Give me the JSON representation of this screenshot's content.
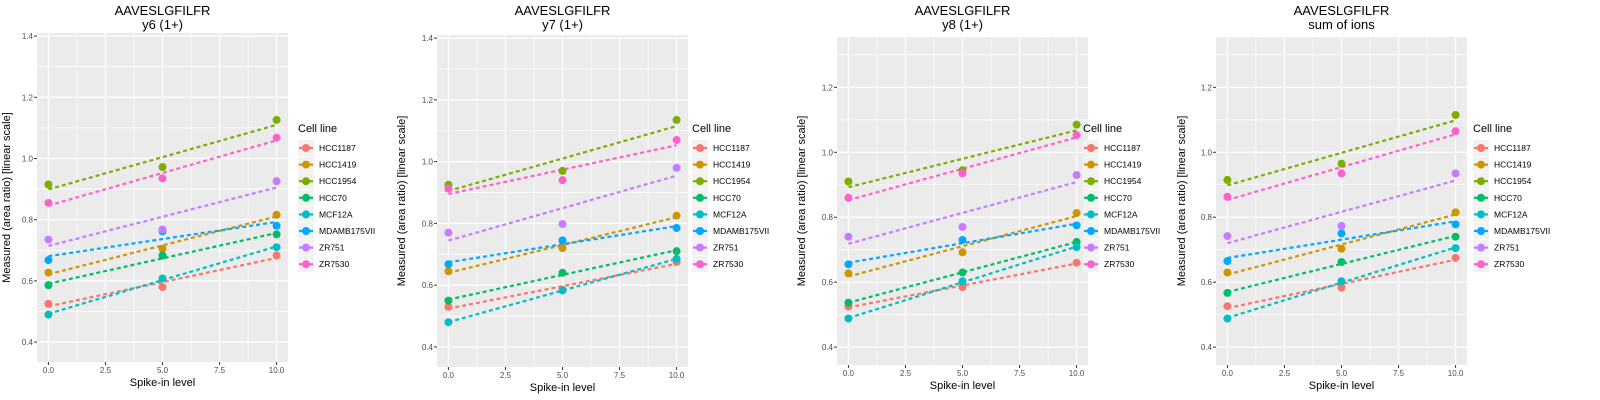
{
  "chart_data": [
    {
      "type": "scatter",
      "title": "AAVESLGFILFR",
      "subtitle": "y6 (1+)",
      "xlabel": "Spike-in level",
      "ylabel": "Measured (area ratio) [linear scale]",
      "xlim": [
        -0.5,
        10.5
      ],
      "ylim": [
        0.335,
        1.41
      ],
      "xticks": [
        "0.0",
        "2.5",
        "5.0",
        "7.5",
        "10.0"
      ],
      "yticks": [
        "0.4",
        "0.6",
        "0.8",
        "1.0",
        "1.2",
        "1.4"
      ],
      "grid": true,
      "x": [
        0,
        5,
        10
      ],
      "legend_title": "Cell line",
      "legend_position": "right",
      "fit_lines": "dashed linear regression per series",
      "series": [
        {
          "name": "HCC1187",
          "color": "#F8766D",
          "values": [
            0.525,
            0.58,
            0.683
          ]
        },
        {
          "name": "HCC1419",
          "color": "#CD9600",
          "values": [
            0.627,
            0.705,
            0.816
          ]
        },
        {
          "name": "HCC1954",
          "color": "#7CAE00",
          "values": [
            0.915,
            0.972,
            1.126
          ]
        },
        {
          "name": "HCC70",
          "color": "#00BE67",
          "values": [
            0.586,
            0.683,
            0.752
          ]
        },
        {
          "name": "MCF12A",
          "color": "#00BFC4",
          "values": [
            0.49,
            0.608,
            0.71
          ]
        },
        {
          "name": "MDAMB175VII",
          "color": "#00A9FF",
          "values": [
            0.668,
            0.762,
            0.78
          ]
        },
        {
          "name": "ZR751",
          "color": "#C77CFF",
          "values": [
            0.735,
            0.768,
            0.926
          ]
        },
        {
          "name": "ZR7530",
          "color": "#FF61CC",
          "values": [
            0.855,
            0.935,
            1.068
          ]
        }
      ]
    },
    {
      "type": "scatter",
      "title": "AAVESLGFILFR",
      "subtitle": "y7 (1+)",
      "xlabel": "Spike-in level",
      "ylabel": "Measured (area ratio) [linear scale]",
      "xlim": [
        -0.5,
        10.5
      ],
      "ylim": [
        0.335,
        1.41
      ],
      "xticks": [
        "0.0",
        "2.5",
        "5.0",
        "7.5",
        "10.0"
      ],
      "yticks": [
        "0.4",
        "0.6",
        "0.8",
        "1.0",
        "1.2",
        "1.4"
      ],
      "grid": true,
      "x": [
        0,
        5,
        10
      ],
      "legend_title": "Cell line",
      "legend_position": "right",
      "fit_lines": "dashed linear regression per series",
      "series": [
        {
          "name": "HCC1187",
          "color": "#F8766D",
          "values": [
            0.53,
            0.585,
            0.675
          ]
        },
        {
          "name": "HCC1419",
          "color": "#CD9600",
          "values": [
            0.645,
            0.72,
            0.825
          ]
        },
        {
          "name": "HCC1954",
          "color": "#7CAE00",
          "values": [
            0.925,
            0.97,
            1.135
          ]
        },
        {
          "name": "HCC70",
          "color": "#00BE67",
          "values": [
            0.55,
            0.64,
            0.71
          ]
        },
        {
          "name": "MCF12A",
          "color": "#00BFC4",
          "values": [
            0.48,
            0.583,
            0.685
          ]
        },
        {
          "name": "MDAMB175VII",
          "color": "#00A9FF",
          "values": [
            0.668,
            0.745,
            0.785
          ]
        },
        {
          "name": "ZR751",
          "color": "#C77CFF",
          "values": [
            0.77,
            0.798,
            0.98
          ]
        },
        {
          "name": "ZR7530",
          "color": "#FF61CC",
          "values": [
            0.912,
            0.94,
            1.07
          ]
        }
      ]
    },
    {
      "type": "scatter",
      "title": "AAVESLGFILFR",
      "subtitle": "y8 (1+)",
      "xlabel": "Spike-in level",
      "ylabel": "Measured (area ratio) [linear scale]",
      "xlim": [
        -0.5,
        10.5
      ],
      "ylim": [
        0.345,
        1.355
      ],
      "xticks": [
        "0.0",
        "2.5",
        "5.0",
        "7.5",
        "10.0"
      ],
      "yticks": [
        "0.4",
        "0.6",
        "0.8",
        "1.0",
        "1.2"
      ],
      "grid": true,
      "x": [
        0,
        5,
        10
      ],
      "legend_title": "Cell line",
      "legend_position": "right",
      "fit_lines": "dashed linear regression per series",
      "series": [
        {
          "name": "HCC1187",
          "color": "#F8766D",
          "values": [
            0.525,
            0.585,
            0.66
          ]
        },
        {
          "name": "HCC1419",
          "color": "#CD9600",
          "values": [
            0.627,
            0.692,
            0.813
          ]
        },
        {
          "name": "HCC1954",
          "color": "#7CAE00",
          "values": [
            0.91,
            0.945,
            1.085
          ]
        },
        {
          "name": "HCC70",
          "color": "#00BE67",
          "values": [
            0.537,
            0.63,
            0.724
          ]
        },
        {
          "name": "MCF12A",
          "color": "#00BFC4",
          "values": [
            0.488,
            0.603,
            0.708
          ]
        },
        {
          "name": "MDAMB175VII",
          "color": "#00A9FF",
          "values": [
            0.655,
            0.73,
            0.775
          ]
        },
        {
          "name": "ZR751",
          "color": "#C77CFF",
          "values": [
            0.74,
            0.77,
            0.93
          ]
        },
        {
          "name": "ZR7530",
          "color": "#FF61CC",
          "values": [
            0.86,
            0.935,
            1.053
          ]
        }
      ]
    },
    {
      "type": "scatter",
      "title": "AAVESLGFILFR",
      "subtitle": "sum of ions",
      "xlabel": "Spike-in level",
      "ylabel": "Measured (area ratio) [linear scale]",
      "xlim": [
        -0.5,
        10.5
      ],
      "ylim": [
        0.345,
        1.355
      ],
      "xticks": [
        "0.0",
        "2.5",
        "5.0",
        "7.5",
        "10.0"
      ],
      "yticks": [
        "0.4",
        "0.6",
        "0.8",
        "1.0",
        "1.2"
      ],
      "grid": true,
      "x": [
        0,
        5,
        10
      ],
      "legend_title": "Cell line",
      "legend_position": "right",
      "fit_lines": "dashed linear regression per series",
      "series": [
        {
          "name": "HCC1187",
          "color": "#F8766D",
          "values": [
            0.526,
            0.583,
            0.675
          ]
        },
        {
          "name": "HCC1419",
          "color": "#CD9600",
          "values": [
            0.63,
            0.703,
            0.815
          ]
        },
        {
          "name": "HCC1954",
          "color": "#7CAE00",
          "values": [
            0.915,
            0.965,
            1.115
          ]
        },
        {
          "name": "HCC70",
          "color": "#00BE67",
          "values": [
            0.567,
            0.662,
            0.74
          ]
        },
        {
          "name": "MCF12A",
          "color": "#00BFC4",
          "values": [
            0.488,
            0.603,
            0.705
          ]
        },
        {
          "name": "MDAMB175VII",
          "color": "#00A9FF",
          "values": [
            0.665,
            0.75,
            0.778
          ]
        },
        {
          "name": "ZR751",
          "color": "#C77CFF",
          "values": [
            0.742,
            0.773,
            0.935
          ]
        },
        {
          "name": "ZR7530",
          "color": "#FF61CC",
          "values": [
            0.863,
            0.935,
            1.065
          ]
        }
      ]
    }
  ]
}
